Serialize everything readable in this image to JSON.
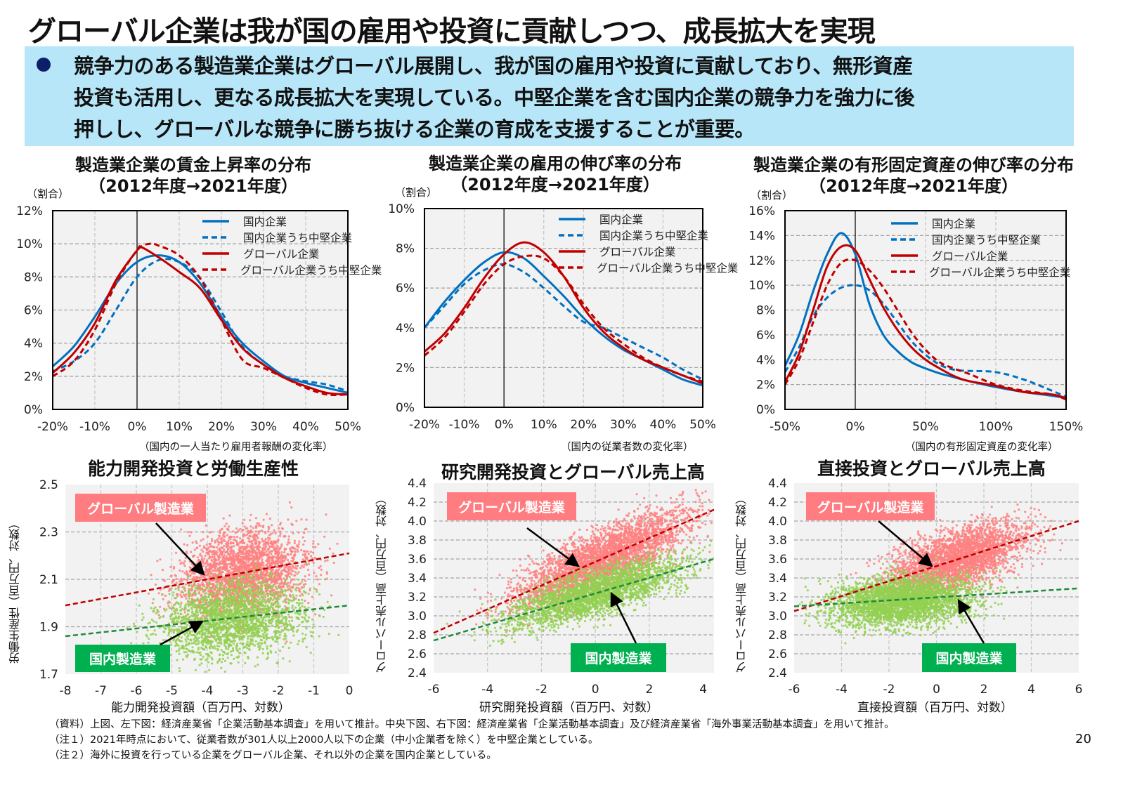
{
  "title": "グローバル企業は我が国の雇用や投資に貢献しつつ、成長拡大を実現",
  "summary": {
    "lines": [
      "競争力のある製造業企業はグローバル展開し、我が国の雇用や投資に貢献しており、無形資産",
      "投資も活用し、更なる成長拡大を実現している。中堅企業を含む国内企業の競争力を強力に後",
      "押しし、グローバルな競争に勝ち抜ける企業の育成を支援することが重要。"
    ]
  },
  "colors": {
    "domestic": "#0070c0",
    "global": "#c00000",
    "global_points": "#ff8080",
    "domestic_points": "#92d050",
    "global_fit": "#c00000",
    "domestic_fit": "#1e8a3c",
    "plot_bg": "#f2f2f2",
    "summary_bg": "#b7e6f8"
  },
  "chart_data": [
    {
      "type": "line",
      "title": "製造業企業の賃金上昇率の分布",
      "subtitle": "（2012年度→2021年度）",
      "ylabel": "（割合）",
      "xlabel": "（国内の一人当たり雇用者報酬の変化率）",
      "xlim": [
        -20,
        50
      ],
      "ylim": [
        0,
        12
      ],
      "xticks": [
        "-20%",
        "-10%",
        "0%",
        "10%",
        "20%",
        "30%",
        "40%",
        "50%"
      ],
      "yticks": [
        "0%",
        "2%",
        "4%",
        "6%",
        "8%",
        "10%",
        "12%"
      ],
      "grid": true,
      "legend": "top-right",
      "series": [
        {
          "name": "国内企業",
          "style": "solid",
          "color": "#0070c0",
          "x": [
            -20,
            -15,
            -10,
            -5,
            0,
            5,
            10,
            15,
            20,
            25,
            30,
            35,
            40,
            45,
            50
          ],
          "y": [
            2.6,
            3.8,
            5.6,
            7.6,
            8.9,
            9.3,
            8.9,
            7.6,
            5.6,
            4.0,
            2.9,
            2.0,
            1.6,
            1.3,
            1.0
          ]
        },
        {
          "name": "国内企業うち中堅企業",
          "style": "dashed",
          "color": "#0070c0",
          "x": [
            -20,
            -15,
            -10,
            -5,
            0,
            5,
            10,
            15,
            20,
            25,
            30,
            35,
            40,
            45,
            50
          ],
          "y": [
            2.3,
            2.9,
            4.0,
            6.0,
            8.0,
            9.0,
            8.9,
            7.9,
            5.9,
            3.8,
            2.7,
            2.0,
            1.7,
            1.5,
            1.1
          ]
        },
        {
          "name": "グローバル企業",
          "style": "solid",
          "color": "#c00000",
          "x": [
            -20,
            -15,
            -10,
            -5,
            0,
            1,
            5,
            10,
            15,
            20,
            25,
            30,
            35,
            40,
            45,
            50
          ],
          "y": [
            2.2,
            3.4,
            5.2,
            7.8,
            9.6,
            9.8,
            9.2,
            8.3,
            7.3,
            5.4,
            3.7,
            2.7,
            1.9,
            1.4,
            1.0,
            0.9
          ]
        },
        {
          "name": "グローバル企業うち中堅企業",
          "style": "dashed",
          "color": "#c00000",
          "x": [
            -20,
            -15,
            -10,
            -5,
            0,
            3,
            5,
            10,
            15,
            20,
            25,
            30,
            35,
            40,
            45,
            50
          ],
          "y": [
            2.0,
            2.9,
            4.8,
            7.6,
            9.6,
            10.0,
            9.9,
            9.3,
            7.9,
            5.4,
            3.0,
            2.5,
            1.9,
            1.3,
            0.9,
            0.9
          ]
        }
      ]
    },
    {
      "type": "line",
      "title": "製造業企業の雇用の伸び率の分布",
      "subtitle": "（2012年度→2021年度）",
      "ylabel": "（割合）",
      "xlabel": "（国内の従業者数の変化率）",
      "xlim": [
        -20,
        50
      ],
      "ylim": [
        0,
        10
      ],
      "xticks": [
        "-20%",
        "-10%",
        "0%",
        "10%",
        "20%",
        "30%",
        "40%",
        "50%"
      ],
      "yticks": [
        "0%",
        "2%",
        "4%",
        "6%",
        "8%",
        "10%"
      ],
      "grid": true,
      "legend": "top-right",
      "series": [
        {
          "name": "国内企業",
          "style": "solid",
          "color": "#0070c0",
          "x": [
            -20,
            -15,
            -10,
            -5,
            0,
            5,
            10,
            15,
            20,
            25,
            30,
            35,
            40,
            45,
            50
          ],
          "y": [
            4.0,
            5.3,
            6.4,
            7.3,
            7.8,
            7.5,
            6.6,
            5.6,
            4.5,
            3.6,
            2.9,
            2.4,
            1.9,
            1.4,
            1.1
          ]
        },
        {
          "name": "国内企業うち中堅企業",
          "style": "dashed",
          "color": "#0070c0",
          "x": [
            -20,
            -15,
            -10,
            -5,
            0,
            5,
            10,
            15,
            20,
            25,
            30,
            35,
            40,
            45,
            50
          ],
          "y": [
            4.0,
            5.1,
            6.2,
            6.9,
            7.2,
            6.8,
            6.0,
            5.1,
            4.3,
            4.0,
            3.5,
            3.0,
            2.5,
            1.9,
            1.4
          ]
        },
        {
          "name": "グローバル企業",
          "style": "solid",
          "color": "#c00000",
          "x": [
            -20,
            -15,
            -10,
            -5,
            0,
            5,
            10,
            15,
            20,
            25,
            30,
            35,
            40,
            45,
            50
          ],
          "y": [
            2.8,
            3.7,
            5.0,
            6.5,
            7.7,
            8.3,
            7.8,
            6.6,
            5.0,
            3.8,
            3.0,
            2.4,
            2.0,
            1.6,
            1.2
          ]
        },
        {
          "name": "グローバル企業うち中堅企業",
          "style": "dashed",
          "color": "#c00000",
          "x": [
            -20,
            -15,
            -10,
            -5,
            0,
            5,
            10,
            15,
            20,
            25,
            30,
            35,
            40,
            45,
            50
          ],
          "y": [
            2.6,
            3.5,
            4.8,
            6.2,
            7.2,
            7.6,
            7.5,
            6.6,
            5.2,
            4.0,
            3.2,
            2.5,
            2.0,
            1.6,
            1.3
          ]
        }
      ]
    },
    {
      "type": "line",
      "title": "製造業企業の有形固定資産の伸び率の分布",
      "subtitle": "（2012年度→2021年度）",
      "ylabel": "（割合）",
      "xlabel": "（国内の有形固定資産の変化率）",
      "xlim": [
        -50,
        150
      ],
      "ylim": [
        0,
        16
      ],
      "xticks": [
        "-50%",
        "0%",
        "50%",
        "100%",
        "150%"
      ],
      "yticks": [
        "0%",
        "2%",
        "4%",
        "6%",
        "8%",
        "10%",
        "12%",
        "14%",
        "16%"
      ],
      "grid": true,
      "legend": "top-right",
      "series": [
        {
          "name": "国内企業",
          "style": "solid",
          "color": "#0070c0",
          "x": [
            -50,
            -40,
            -30,
            -20,
            -10,
            0,
            10,
            20,
            30,
            40,
            50,
            60,
            70,
            80,
            100,
            120,
            140,
            150
          ],
          "y": [
            3.5,
            6.0,
            9.5,
            12.5,
            14.2,
            12.5,
            8.5,
            6.0,
            4.7,
            3.8,
            3.3,
            2.9,
            2.6,
            2.3,
            1.8,
            1.4,
            1.1,
            0.9
          ]
        },
        {
          "name": "国内企業うち中堅企業",
          "style": "dashed",
          "color": "#0070c0",
          "x": [
            -50,
            -40,
            -30,
            -20,
            -10,
            0,
            10,
            20,
            30,
            40,
            50,
            60,
            70,
            80,
            100,
            120,
            140,
            150
          ],
          "y": [
            3.0,
            5.0,
            7.5,
            9.0,
            9.8,
            10.0,
            9.6,
            8.5,
            7.0,
            5.5,
            4.4,
            3.6,
            3.2,
            3.1,
            3.0,
            2.4,
            1.5,
            1.0
          ]
        },
        {
          "name": "グローバル企業",
          "style": "solid",
          "color": "#c00000",
          "x": [
            -50,
            -40,
            -30,
            -20,
            -10,
            0,
            10,
            20,
            30,
            40,
            50,
            60,
            70,
            80,
            100,
            120,
            140,
            150
          ],
          "y": [
            2.2,
            4.5,
            8.0,
            11.5,
            13.1,
            12.8,
            10.5,
            8.2,
            6.4,
            5.0,
            4.0,
            3.3,
            2.7,
            2.3,
            1.9,
            1.4,
            1.2,
            0.9
          ]
        },
        {
          "name": "グローバル企業うち中堅企業",
          "style": "dashed",
          "color": "#c00000",
          "x": [
            -50,
            -40,
            -30,
            -20,
            -10,
            0,
            10,
            20,
            30,
            40,
            50,
            60,
            70,
            80,
            100,
            120,
            140,
            150
          ],
          "y": [
            2.0,
            4.0,
            7.0,
            10.0,
            11.8,
            12.0,
            11.2,
            9.8,
            8.0,
            6.2,
            4.8,
            3.8,
            3.3,
            2.9,
            2.0,
            1.5,
            1.2,
            0.8
          ]
        }
      ]
    },
    {
      "type": "scatter",
      "title": "能力開発投資と労働生産性",
      "xlabel": "能力開発投資額（百万円、対数）",
      "ylabel": "労働生産性（百万円、対数）",
      "xlim": [
        -8,
        0
      ],
      "ylim": [
        1.7,
        2.5
      ],
      "xticks": [
        "-8",
        "-7",
        "-6",
        "-5",
        "-4",
        "-3",
        "-2",
        "-1",
        "0"
      ],
      "yticks": [
        "1.7",
        "1.9",
        "2.1",
        "2.3",
        "2.5"
      ],
      "grid": true,
      "series": [
        {
          "name": "グローバル製造業",
          "color": "#ff8080",
          "fit": {
            "x": [
              -8,
              0
            ],
            "y": [
              1.99,
              2.21
            ]
          }
        },
        {
          "name": "国内製造業",
          "color": "#92d050",
          "fit": {
            "x": [
              -8,
              0
            ],
            "y": [
              1.86,
              1.99
            ]
          }
        }
      ]
    },
    {
      "type": "scatter",
      "title": "研究開発投資とグローバル売上高",
      "xlabel": "研究開発投資額（百万円、対数）",
      "ylabel": "グローバル売上高（百万円、対数）",
      "xlim": [
        -6,
        4.4
      ],
      "ylim": [
        2.4,
        4.4
      ],
      "xticks": [
        "-6",
        "-4",
        "-2",
        "0",
        "2",
        "4"
      ],
      "yticks": [
        "2.4",
        "2.6",
        "2.8",
        "3.0",
        "3.2",
        "3.4",
        "3.6",
        "3.8",
        "4.0",
        "4.2",
        "4.4"
      ],
      "grid": true,
      "series": [
        {
          "name": "グローバル製造業",
          "color": "#ff8080",
          "fit": {
            "x": [
              -6,
              4.4
            ],
            "y": [
              2.82,
              4.12
            ]
          }
        },
        {
          "name": "国内製造業",
          "color": "#92d050",
          "fit": {
            "x": [
              -6,
              4.4
            ],
            "y": [
              2.74,
              3.6
            ]
          }
        }
      ]
    },
    {
      "type": "scatter",
      "title": "直接投資とグローバル売上高",
      "xlabel": "直接投資額（百万円、対数）",
      "ylabel": "グローバル売上高（百万円、対数）",
      "xlim": [
        -6,
        6
      ],
      "ylim": [
        2.4,
        4.4
      ],
      "xticks": [
        "-6",
        "-4",
        "-2",
        "0",
        "2",
        "4",
        "6"
      ],
      "yticks": [
        "2.4",
        "2.6",
        "2.8",
        "3.0",
        "3.2",
        "3.4",
        "3.6",
        "3.8",
        "4.0",
        "4.2",
        "4.4"
      ],
      "grid": true,
      "series": [
        {
          "name": "グローバル製造業",
          "color": "#ff8080",
          "fit": {
            "x": [
              -6,
              6
            ],
            "y": [
              3.05,
              4.0
            ]
          }
        },
        {
          "name": "国内製造業",
          "color": "#92d050",
          "fit": {
            "x": [
              -6,
              6
            ],
            "y": [
              3.1,
              3.29
            ]
          }
        }
      ]
    }
  ],
  "footnotes": [
    "（資料）上図、左下図：経済産業省「企業活動基本調査」を用いて推計。中央下図、右下図：経済産業省「企業活動基本調査」及び経済産業省「海外事業活動基本調査」を用いて推計。",
    "（注１）2021年時点において、従業者数が301人以上2000人以下の企業（中小企業者を除く）を中堅企業としている。",
    "（注２）海外に投資を行っている企業をグローバル企業、それ以外の企業を国内企業としている。"
  ],
  "page_number": "20"
}
